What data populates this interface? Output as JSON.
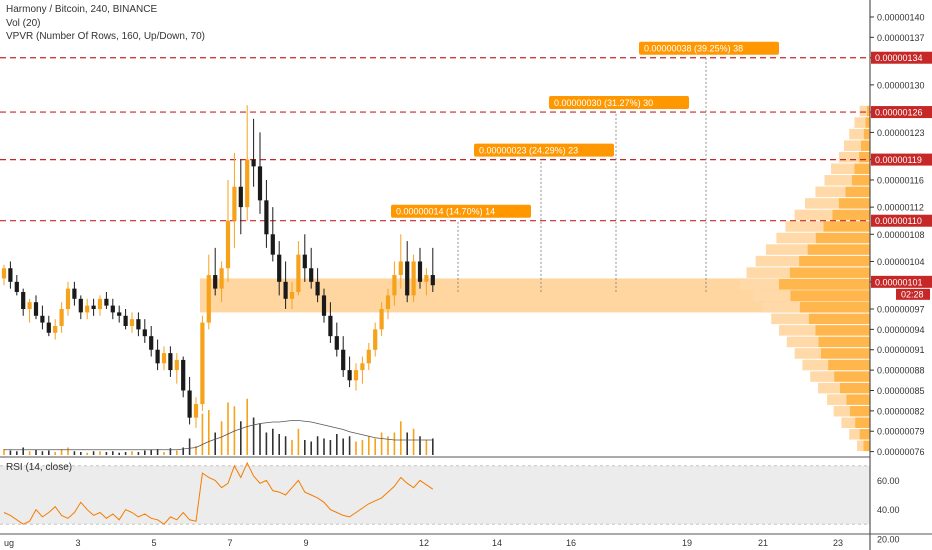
{
  "title": "Harmony / Bitcoin, 240, BINANCE",
  "indicators": {
    "volume": "Vol (20)",
    "vpvr": "VPVR (Number Of Rows, 160, Up/Down, 70)",
    "rsi": "RSI (14, close)"
  },
  "colors": {
    "up": "#f7a21b",
    "down": "#1a1a1a",
    "volume_up": "#f7a21b",
    "volume_down": "#333333",
    "zone": "#ffcf8f",
    "level_line": "#c62828",
    "price_label": "#ff9800",
    "vpvr_up": "#ffb74d",
    "vpvr_down": "#ffd9a8",
    "rsi_line": "#f57c00",
    "rsi_band": "#ececec"
  },
  "chart_data": [
    {
      "type": "candlestick",
      "name": "price",
      "ylim": [
        7.55e-07,
        1.425e-06
      ],
      "y_ticks": [
        "0.00000076",
        "0.00000079",
        "0.00000082",
        "0.00000085",
        "0.00000088",
        "0.00000091",
        "0.00000094",
        "0.00000097",
        "0.00000101",
        "0.00000104",
        "0.00000108",
        "0.00000112",
        "0.00000116",
        "0.00000119",
        "0.00000123",
        "0.00000126",
        "0.00000130",
        "0.00000134",
        "0.00000137",
        "0.00000140"
      ],
      "x_ticks": [
        "ug",
        "3",
        "5",
        "7",
        "9",
        "12",
        "14",
        "16",
        "19",
        "21",
        "23"
      ],
      "ohlc": [
        [
          1.015,
          1.035,
          1.005,
          1.03
        ],
        [
          1.03,
          1.04,
          1.0,
          1.01
        ],
        [
          1.01,
          1.02,
          0.99,
          0.995
        ],
        [
          0.995,
          1.0,
          0.96,
          0.97
        ],
        [
          0.97,
          0.985,
          0.95,
          0.98
        ],
        [
          0.98,
          0.99,
          0.955,
          0.96
        ],
        [
          0.96,
          0.975,
          0.94,
          0.95
        ],
        [
          0.95,
          0.96,
          0.93,
          0.935
        ],
        [
          0.935,
          0.955,
          0.925,
          0.945
        ],
        [
          0.945,
          0.98,
          0.935,
          0.97
        ],
        [
          0.97,
          1.01,
          0.96,
          1.0
        ],
        [
          1.0,
          1.01,
          0.975,
          0.985
        ],
        [
          0.985,
          0.99,
          0.955,
          0.965
        ],
        [
          0.965,
          0.985,
          0.955,
          0.975
        ],
        [
          0.975,
          0.985,
          0.96,
          0.97
        ],
        [
          0.97,
          0.99,
          0.96,
          0.985
        ],
        [
          0.985,
          0.995,
          0.97,
          0.975
        ],
        [
          0.975,
          0.985,
          0.955,
          0.965
        ],
        [
          0.965,
          0.975,
          0.95,
          0.96
        ],
        [
          0.96,
          0.97,
          0.94,
          0.945
        ],
        [
          0.945,
          0.965,
          0.935,
          0.955
        ],
        [
          0.955,
          0.965,
          0.93,
          0.94
        ],
        [
          0.94,
          0.955,
          0.92,
          0.93
        ],
        [
          0.93,
          0.945,
          0.9,
          0.91
        ],
        [
          0.91,
          0.925,
          0.88,
          0.89
        ],
        [
          0.89,
          0.915,
          0.88,
          0.905
        ],
        [
          0.905,
          0.915,
          0.87,
          0.88
        ],
        [
          0.88,
          0.905,
          0.86,
          0.895
        ],
        [
          0.895,
          0.9,
          0.84,
          0.85
        ],
        [
          0.85,
          0.87,
          0.8,
          0.81
        ],
        [
          0.81,
          0.84,
          0.795,
          0.83
        ],
        [
          0.83,
          0.96,
          0.82,
          0.95
        ],
        [
          0.95,
          1.05,
          0.94,
          1.02
        ],
        [
          1.02,
          1.06,
          0.99,
          1.0
        ],
        [
          1.0,
          1.04,
          0.98,
          1.03
        ],
        [
          1.03,
          1.16,
          1.01,
          1.1
        ],
        [
          1.1,
          1.2,
          1.06,
          1.15
        ],
        [
          1.15,
          1.19,
          1.08,
          1.12
        ],
        [
          1.12,
          1.27,
          1.1,
          1.19
        ],
        [
          1.19,
          1.25,
          1.15,
          1.18
        ],
        [
          1.18,
          1.23,
          1.11,
          1.13
        ],
        [
          1.13,
          1.16,
          1.06,
          1.08
        ],
        [
          1.08,
          1.12,
          1.04,
          1.05
        ],
        [
          1.05,
          1.07,
          0.99,
          1.01
        ],
        [
          1.01,
          1.04,
          0.97,
          0.985
        ],
        [
          0.985,
          1.01,
          0.97,
          0.995
        ],
        [
          0.995,
          1.07,
          0.99,
          1.05
        ],
        [
          1.05,
          1.08,
          1.01,
          1.03
        ],
        [
          1.03,
          1.06,
          1.0,
          1.01
        ],
        [
          1.01,
          1.03,
          0.98,
          0.99
        ],
        [
          0.99,
          1.0,
          0.95,
          0.96
        ],
        [
          0.96,
          0.98,
          0.92,
          0.93
        ],
        [
          0.93,
          0.95,
          0.9,
          0.91
        ],
        [
          0.91,
          0.93,
          0.87,
          0.88
        ],
        [
          0.88,
          0.9,
          0.855,
          0.865
        ],
        [
          0.865,
          0.89,
          0.85,
          0.88
        ],
        [
          0.88,
          0.9,
          0.86,
          0.89
        ],
        [
          0.89,
          0.92,
          0.88,
          0.91
        ],
        [
          0.91,
          0.95,
          0.9,
          0.94
        ],
        [
          0.94,
          0.98,
          0.93,
          0.97
        ],
        [
          0.97,
          1.0,
          0.955,
          0.99
        ],
        [
          0.99,
          1.04,
          0.975,
          1.02
        ],
        [
          1.02,
          1.08,
          1.0,
          1.04
        ],
        [
          1.04,
          1.07,
          0.98,
          0.99
        ],
        [
          0.99,
          1.05,
          0.98,
          1.04
        ],
        [
          1.04,
          1.06,
          1.0,
          1.01
        ],
        [
          1.01,
          1.03,
          0.99,
          1.02
        ],
        [
          1.02,
          1.06,
          0.995,
          1.005
        ]
      ]
    },
    {
      "type": "bar",
      "name": "volume",
      "values": [
        0.08,
        0.06,
        0.05,
        0.1,
        0.05,
        0.07,
        0.05,
        0.06,
        0.04,
        0.08,
        0.1,
        0.05,
        0.04,
        0.03,
        0.05,
        0.05,
        0.04,
        0.05,
        0.03,
        0.04,
        0.05,
        0.04,
        0.06,
        0.07,
        0.08,
        0.04,
        0.09,
        0.06,
        0.1,
        0.22,
        0.12,
        0.55,
        0.6,
        0.3,
        0.45,
        0.7,
        0.65,
        0.45,
        0.75,
        0.5,
        0.42,
        0.3,
        0.35,
        0.28,
        0.25,
        0.2,
        0.35,
        0.2,
        0.18,
        0.25,
        0.22,
        0.2,
        0.28,
        0.22,
        0.25,
        0.18,
        0.2,
        0.25,
        0.22,
        0.3,
        0.25,
        0.3,
        0.45,
        0.3,
        0.35,
        0.25,
        0.2,
        0.22
      ],
      "ma": [
        0.07,
        0.07,
        0.07,
        0.07,
        0.07,
        0.07,
        0.07,
        0.07,
        0.07,
        0.07,
        0.07,
        0.07,
        0.07,
        0.07,
        0.07,
        0.07,
        0.07,
        0.07,
        0.07,
        0.07,
        0.07,
        0.07,
        0.07,
        0.07,
        0.07,
        0.07,
        0.07,
        0.07,
        0.08,
        0.09,
        0.1,
        0.14,
        0.18,
        0.21,
        0.24,
        0.28,
        0.32,
        0.35,
        0.38,
        0.4,
        0.42,
        0.43,
        0.44,
        0.44,
        0.45,
        0.46,
        0.46,
        0.45,
        0.44,
        0.42,
        0.4,
        0.38,
        0.36,
        0.34,
        0.31,
        0.29,
        0.27,
        0.25,
        0.23,
        0.22,
        0.21,
        0.2,
        0.2,
        0.2,
        0.2,
        0.2,
        0.2,
        0.2
      ]
    },
    {
      "type": "line",
      "name": "rsi",
      "ylim": [
        26,
        74
      ],
      "y_ticks": [
        "60.00",
        "40.00",
        "20.00"
      ],
      "band": [
        30,
        70
      ],
      "values": [
        38,
        36,
        33,
        30,
        32,
        40,
        35,
        38,
        42,
        36,
        34,
        38,
        45,
        40,
        36,
        38,
        34,
        37,
        33,
        40,
        38,
        35,
        37,
        34,
        33,
        30,
        35,
        33,
        38,
        33,
        32,
        65,
        62,
        60,
        55,
        58,
        70,
        62,
        72,
        63,
        58,
        60,
        53,
        52,
        50,
        55,
        60,
        52,
        50,
        48,
        45,
        40,
        38,
        36,
        35,
        38,
        41,
        44,
        46,
        48,
        52,
        56,
        62,
        58,
        55,
        60,
        57,
        54
      ]
    }
  ],
  "measure_labels": [
    {
      "text": "0.00000014 (14.70%) 14",
      "price": 1.1
    },
    {
      "text": "0.00000023 (24.29%) 23",
      "price": 1.19
    },
    {
      "text": "0.00000030 (31.27%) 30",
      "price": 1.26
    },
    {
      "text": "0.00000038 (39.25%) 38",
      "price": 1.34
    }
  ],
  "level_labels": [
    {
      "text": "0.00000134",
      "price": 1.34
    },
    {
      "text": "0.00000126",
      "price": 1.26
    },
    {
      "text": "0.00000119",
      "price": 1.19
    },
    {
      "text": "0.00000110",
      "price": 1.1
    }
  ],
  "last_price_label": "0.00000101",
  "countdown_label": "02:28",
  "zone": {
    "low": 0.965,
    "high": 1.015
  },
  "vpvr": {
    "range": [
      0.76,
      1.27
    ],
    "rows": [
      0.1,
      0.16,
      0.22,
      0.28,
      0.33,
      0.4,
      0.46,
      0.52,
      0.58,
      0.64,
      0.7,
      0.76,
      0.83,
      0.9,
      1.0,
      0.95,
      0.88,
      0.8,
      0.72,
      0.65,
      0.58,
      0.5,
      0.42,
      0.35,
      0.3,
      0.24,
      0.2,
      0.16,
      0.12,
      0.08
    ],
    "up_share": [
      0.5,
      0.5,
      0.52,
      0.55,
      0.55,
      0.58,
      0.6,
      0.62,
      0.65,
      0.62,
      0.6,
      0.62,
      0.65,
      0.68,
      0.7,
      0.65,
      0.62,
      0.6,
      0.58,
      0.55,
      0.5,
      0.48,
      0.45,
      0.4,
      0.4,
      0.35,
      0.35,
      0.3,
      0.3,
      0.3
    ]
  }
}
